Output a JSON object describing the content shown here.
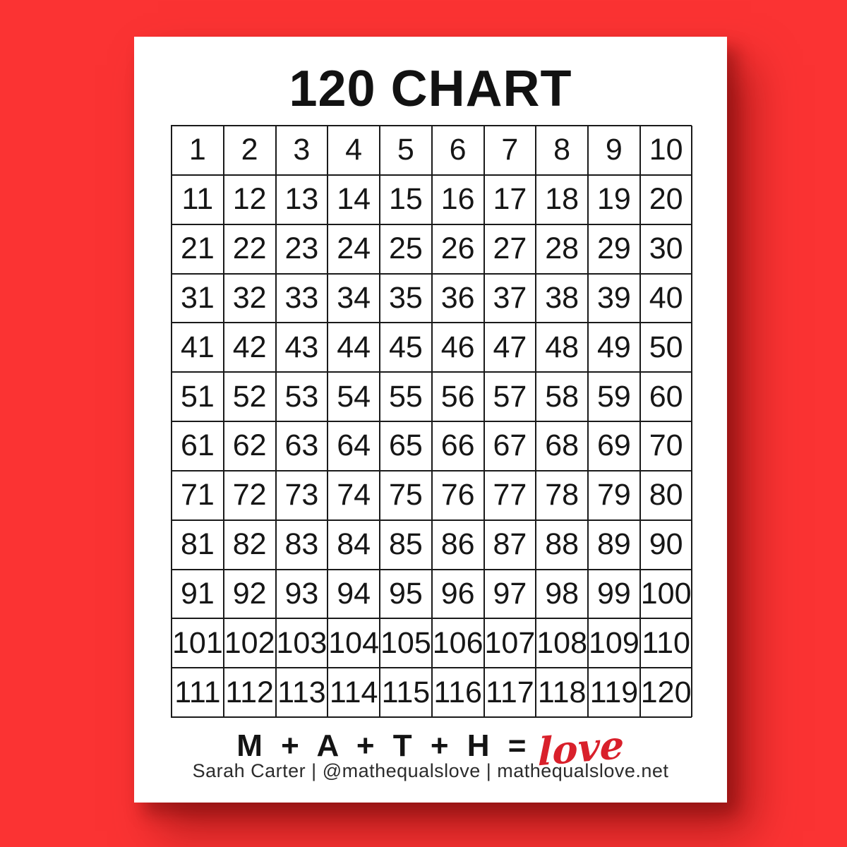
{
  "page": {
    "title": "120 CHART",
    "grid": {
      "rows": 12,
      "cols": 10,
      "numbers": [
        1,
        2,
        3,
        4,
        5,
        6,
        7,
        8,
        9,
        10,
        11,
        12,
        13,
        14,
        15,
        16,
        17,
        18,
        19,
        20,
        21,
        22,
        23,
        24,
        25,
        26,
        27,
        28,
        29,
        30,
        31,
        32,
        33,
        34,
        35,
        36,
        37,
        38,
        39,
        40,
        41,
        42,
        43,
        44,
        45,
        46,
        47,
        48,
        49,
        50,
        51,
        52,
        53,
        54,
        55,
        56,
        57,
        58,
        59,
        60,
        61,
        62,
        63,
        64,
        65,
        66,
        67,
        68,
        69,
        70,
        71,
        72,
        73,
        74,
        75,
        76,
        77,
        78,
        79,
        80,
        81,
        82,
        83,
        84,
        85,
        86,
        87,
        88,
        89,
        90,
        91,
        92,
        93,
        94,
        95,
        96,
        97,
        98,
        99,
        100,
        101,
        102,
        103,
        104,
        105,
        106,
        107,
        108,
        109,
        110,
        111,
        112,
        113,
        114,
        115,
        116,
        117,
        118,
        119,
        120
      ]
    },
    "footer": {
      "equation": "M + A + T + H =",
      "equation_love": "love",
      "byline": "Sarah Carter  |  @mathequalslove  |  mathequalslove.net"
    },
    "colors": {
      "background_red": "#fb3333",
      "page_white": "#ffffff",
      "grid_border": "#1a1a1a",
      "love_red": "#d9202b",
      "text_black": "#141414"
    }
  }
}
